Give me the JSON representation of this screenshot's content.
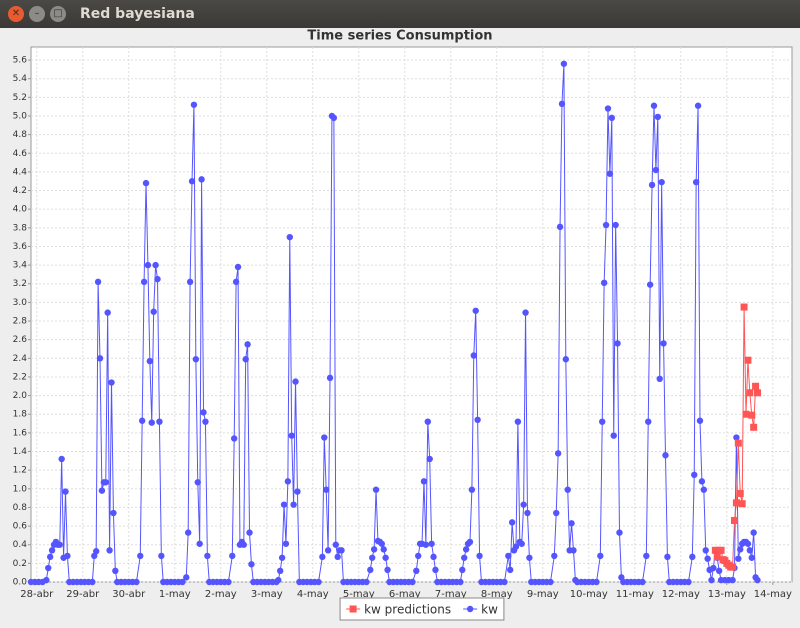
{
  "window": {
    "title": "Red bayesiana"
  },
  "chart_data": {
    "type": "line",
    "title": "Time series Consumption",
    "xlim": [
      -3,
      394
    ],
    "ylim": [
      0,
      5.74
    ],
    "xticks": [
      {
        "value": 0,
        "label": "28-abr"
      },
      {
        "value": 24,
        "label": "29-abr"
      },
      {
        "value": 48,
        "label": "30-abr"
      },
      {
        "value": 72,
        "label": "1-may"
      },
      {
        "value": 96,
        "label": "2-may"
      },
      {
        "value": 120,
        "label": "3-may"
      },
      {
        "value": 144,
        "label": "4-may"
      },
      {
        "value": 168,
        "label": "5-may"
      },
      {
        "value": 192,
        "label": "6-may"
      },
      {
        "value": 216,
        "label": "7-may"
      },
      {
        "value": 240,
        "label": "8-may"
      },
      {
        "value": 264,
        "label": "9-may"
      },
      {
        "value": 288,
        "label": "10-may"
      },
      {
        "value": 312,
        "label": "11-may"
      },
      {
        "value": 336,
        "label": "12-may"
      },
      {
        "value": 360,
        "label": "13-may"
      },
      {
        "value": 384,
        "label": "14-may"
      }
    ],
    "yticks": [
      {
        "value": 0,
        "label": "0.0"
      },
      0.2,
      0.4,
      0.6,
      0.8,
      {
        "value": 1,
        "label": "1.0"
      },
      1.2,
      1.4,
      1.6,
      1.8,
      {
        "value": 2,
        "label": "2.0"
      },
      2.2,
      2.4,
      2.6,
      2.8,
      {
        "value": 3,
        "label": "3.0"
      },
      3.2,
      3.4,
      3.6,
      3.8,
      {
        "value": 4,
        "label": "4.0"
      },
      4.2,
      4.4,
      4.6,
      4.8,
      {
        "value": 5,
        "label": "5.0"
      },
      5.2,
      5.4,
      5.6
    ],
    "grid": true,
    "series": [
      {
        "name": "kw predictions",
        "color": "#ff5555",
        "marker": "square",
        "x": [
          354,
          355,
          356,
          357,
          358,
          359,
          360,
          361,
          362,
          363,
          364,
          365,
          366,
          367,
          368,
          369,
          370,
          371,
          372,
          373,
          374,
          375,
          376
        ],
        "values": [
          0.34,
          0.27,
          0.34,
          0.34,
          0.24,
          0.23,
          0.2,
          0.18,
          0.16,
          0.16,
          0.66,
          0.85,
          1.49,
          0.95,
          0.84,
          2.95,
          1.8,
          2.38,
          2.03,
          1.79,
          1.66,
          2.1,
          2.03
        ]
      },
      {
        "name": "kw",
        "color": "#5555ff",
        "marker": "circle",
        "x": [
          -3,
          -1,
          1,
          3,
          5,
          6,
          7,
          8,
          9,
          10,
          11,
          12,
          13,
          14,
          15,
          16,
          17,
          19,
          21,
          23,
          25,
          27,
          29,
          30,
          31,
          32,
          33,
          34,
          35,
          36,
          37,
          38,
          39,
          40,
          41,
          42,
          44,
          46,
          48,
          50,
          52,
          54,
          55,
          56,
          57,
          58,
          59,
          60,
          61,
          62,
          63,
          64,
          65,
          66,
          68,
          70,
          72,
          74,
          76,
          78,
          79,
          80,
          81,
          82,
          83,
          84,
          85,
          86,
          87,
          88,
          89,
          90,
          92,
          94,
          96,
          98,
          100,
          102,
          103,
          104,
          105,
          106,
          107,
          108,
          109,
          110,
          111,
          112,
          113,
          115,
          117,
          119,
          121,
          123,
          125,
          126,
          127,
          128,
          129,
          130,
          131,
          132,
          133,
          134,
          135,
          136,
          137,
          139,
          141,
          143,
          145,
          147,
          149,
          150,
          151,
          152,
          153,
          154,
          155,
          156,
          157,
          158,
          159,
          160,
          162,
          164,
          166,
          168,
          170,
          172,
          174,
          175,
          176,
          177,
          178,
          179,
          180,
          181,
          182,
          183,
          184,
          186,
          188,
          190,
          192,
          194,
          196,
          198,
          199,
          200,
          201,
          202,
          203,
          204,
          205,
          206,
          207,
          208,
          209,
          211,
          213,
          215,
          217,
          219,
          221,
          222,
          223,
          224,
          225,
          226,
          227,
          228,
          229,
          230,
          231,
          232,
          234,
          236,
          238,
          240,
          242,
          244,
          246,
          247,
          248,
          249,
          250,
          251,
          252,
          253,
          254,
          255,
          256,
          257,
          258,
          260,
          262,
          264,
          266,
          268,
          270,
          271,
          272,
          273,
          274,
          275,
          276,
          277,
          278,
          279,
          280,
          281,
          282,
          284,
          286,
          288,
          290,
          292,
          294,
          295,
          296,
          297,
          298,
          299,
          300,
          301,
          302,
          303,
          304,
          305,
          306,
          308,
          310,
          312,
          314,
          316,
          318,
          319,
          320,
          321,
          322,
          323,
          324,
          325,
          326,
          327,
          328,
          329,
          330,
          332,
          334,
          336,
          338,
          340,
          342,
          343,
          344,
          345,
          346,
          347,
          348,
          349,
          350,
          351,
          352,
          353,
          354,
          355,
          356,
          357,
          359,
          361,
          363,
          364,
          365,
          366,
          367,
          368,
          369,
          370,
          371,
          372,
          373,
          374,
          375,
          376
        ],
        "values": [
          0,
          0,
          0,
          0,
          0.02,
          0.15,
          0.27,
          0.34,
          0.4,
          0.43,
          0.4,
          0.4,
          1.32,
          0.26,
          0.97,
          0.28,
          0,
          0,
          0,
          0,
          0,
          0,
          0,
          0.28,
          0.33,
          3.22,
          2.4,
          0.98,
          1.07,
          1.07,
          2.89,
          0.34,
          2.14,
          0.74,
          0.12,
          0,
          0,
          0,
          0,
          0,
          0,
          0.28,
          1.73,
          3.22,
          4.28,
          3.4,
          2.37,
          1.71,
          2.9,
          3.4,
          3.25,
          1.72,
          0.28,
          0,
          0,
          0,
          0,
          0,
          0,
          0.05,
          0.53,
          3.22,
          4.3,
          5.12,
          2.39,
          1.07,
          0.41,
          4.32,
          1.82,
          1.72,
          0.28,
          0,
          0,
          0,
          0,
          0,
          0,
          0.28,
          1.54,
          3.22,
          3.38,
          0.4,
          0.43,
          0.4,
          2.39,
          2.55,
          0.53,
          0.19,
          0,
          0,
          0,
          0,
          0,
          0,
          0,
          0.02,
          0.12,
          0.26,
          0.83,
          0.41,
          1.08,
          3.7,
          1.57,
          0.83,
          2.15,
          0.97,
          0,
          0,
          0,
          0,
          0,
          0,
          0.27,
          1.55,
          0.99,
          0.34,
          2.19,
          5.0,
          4.98,
          0.4,
          0.27,
          0.34,
          0.34,
          0,
          0,
          0,
          0,
          0,
          0,
          0,
          0.13,
          0.26,
          0.35,
          0.99,
          0.44,
          0.43,
          0.41,
          0.35,
          0.26,
          0.13,
          0,
          0,
          0,
          0,
          0,
          0,
          0,
          0.12,
          0.28,
          0.41,
          0.41,
          1.08,
          0.4,
          1.72,
          1.32,
          0.41,
          0.27,
          0.13,
          0,
          0,
          0,
          0,
          0,
          0,
          0,
          0.13,
          0.26,
          0.35,
          0.41,
          0.43,
          0.99,
          2.43,
          2.91,
          1.74,
          0.28,
          0,
          0,
          0,
          0,
          0,
          0,
          0,
          0.28,
          0.13,
          0.64,
          0.34,
          0.38,
          1.72,
          0.43,
          0.41,
          0.83,
          2.89,
          0.74,
          0.26,
          0,
          0,
          0,
          0,
          0,
          0,
          0.28,
          0.74,
          1.38,
          3.81,
          5.13,
          5.56,
          2.39,
          0.99,
          0.34,
          0.63,
          0.34,
          0.02,
          0,
          0,
          0,
          0,
          0,
          0,
          0.28,
          1.72,
          3.21,
          3.83,
          5.08,
          4.38,
          4.98,
          1.57,
          3.83,
          2.56,
          0.53,
          0.05,
          0,
          0,
          0,
          0,
          0,
          0,
          0.28,
          1.72,
          3.19,
          4.26,
          5.11,
          4.42,
          4.99,
          2.18,
          4.29,
          2.56,
          1.36,
          0.27,
          0,
          0,
          0,
          0,
          0,
          0,
          0.27,
          1.15,
          4.29,
          5.11,
          1.73,
          1.08,
          0.99,
          0.34,
          0.25,
          0.13,
          0.02,
          0.15,
          0.34,
          0.26,
          0.12,
          0.02,
          0.02,
          0.02,
          0.02,
          0.15,
          1.55,
          0.25,
          0.35,
          0.41,
          0.43,
          0.43,
          0.41,
          0.34,
          0.26,
          0.53,
          0.05,
          0.02
        ]
      }
    ]
  }
}
